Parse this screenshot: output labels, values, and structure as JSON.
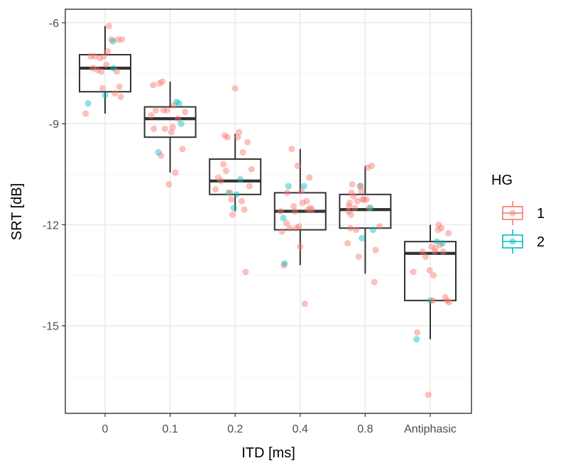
{
  "chart_data": {
    "type": "box",
    "xlabel": "ITD [ms]",
    "ylabel": "SRT [dB]",
    "categories": [
      "0",
      "0.1",
      "0.2",
      "0.4",
      "0.8",
      "Antiphasic"
    ],
    "ylim": [
      -17.6,
      -5.6
    ],
    "yticks": [
      -6,
      -9,
      -12,
      -15
    ],
    "grid": true,
    "legend": {
      "title": "HG",
      "position": "right",
      "entries": [
        {
          "label": "1",
          "color": "#F8766D"
        },
        {
          "label": "2",
          "color": "#00BFC4"
        }
      ]
    },
    "boxes": [
      {
        "category": "0",
        "whisker_low": -8.7,
        "q1": -8.05,
        "median": -7.35,
        "q3": -6.95,
        "whisker_high": -6.1
      },
      {
        "category": "0.1",
        "whisker_low": -10.45,
        "q1": -9.4,
        "median": -8.85,
        "q3": -8.5,
        "whisker_high": -7.75
      },
      {
        "category": "0.2",
        "whisker_low": -11.6,
        "q1": -11.1,
        "median": -10.7,
        "q3": -10.05,
        "whisker_high": -9.3
      },
      {
        "category": "0.4",
        "whisker_low": -13.2,
        "q1": -12.15,
        "median": -11.6,
        "q3": -11.05,
        "whisker_high": -9.75
      },
      {
        "category": "0.8",
        "whisker_low": -13.45,
        "q1": -12.1,
        "median": -11.55,
        "q3": -11.1,
        "whisker_high": -10.25
      },
      {
        "category": "Antiphasic",
        "whisker_low": -15.4,
        "q1": -14.25,
        "median": -12.85,
        "q3": -12.5,
        "whisker_high": -12.0
      }
    ],
    "points": [
      {
        "category": "0",
        "x_offset": -0.3,
        "y": -8.7,
        "group": "1"
      },
      {
        "category": "0",
        "x_offset": -0.26,
        "y": -8.4,
        "group": "2"
      },
      {
        "category": "0",
        "x_offset": -0.22,
        "y": -7.0,
        "group": "1"
      },
      {
        "category": "0",
        "x_offset": -0.19,
        "y": -7.35,
        "group": "1"
      },
      {
        "category": "0",
        "x_offset": -0.16,
        "y": -7.0,
        "group": "1"
      },
      {
        "category": "0",
        "x_offset": -0.12,
        "y": -7.4,
        "group": "1"
      },
      {
        "category": "0",
        "x_offset": -0.08,
        "y": -7.05,
        "group": "1"
      },
      {
        "category": "0",
        "x_offset": -0.06,
        "y": -7.45,
        "group": "1"
      },
      {
        "category": "0",
        "x_offset": -0.04,
        "y": -7.95,
        "group": "1"
      },
      {
        "category": "0",
        "x_offset": -0.02,
        "y": -7.0,
        "group": "1"
      },
      {
        "category": "0",
        "x_offset": 0.0,
        "y": -8.15,
        "group": "2"
      },
      {
        "category": "0",
        "x_offset": 0.02,
        "y": -7.25,
        "group": "1"
      },
      {
        "category": "0",
        "x_offset": 0.04,
        "y": -6.85,
        "group": "1"
      },
      {
        "category": "0",
        "x_offset": 0.06,
        "y": -6.1,
        "group": "1"
      },
      {
        "category": "0",
        "x_offset": 0.1,
        "y": -6.5,
        "group": "1"
      },
      {
        "category": "0",
        "x_offset": 0.12,
        "y": -6.55,
        "group": "2"
      },
      {
        "category": "0",
        "x_offset": 0.13,
        "y": -7.35,
        "group": "2"
      },
      {
        "category": "0",
        "x_offset": 0.15,
        "y": -8.1,
        "group": "1"
      },
      {
        "category": "0",
        "x_offset": 0.18,
        "y": -7.45,
        "group": "1"
      },
      {
        "category": "0",
        "x_offset": 0.2,
        "y": -6.5,
        "group": "1"
      },
      {
        "category": "0",
        "x_offset": 0.22,
        "y": -7.9,
        "group": "1"
      },
      {
        "category": "0",
        "x_offset": 0.24,
        "y": -8.2,
        "group": "1"
      },
      {
        "category": "0",
        "x_offset": 0.26,
        "y": -6.5,
        "group": "1"
      },
      {
        "category": "0.1",
        "x_offset": -0.29,
        "y": -8.75,
        "group": "1"
      },
      {
        "category": "0.1",
        "x_offset": -0.26,
        "y": -7.85,
        "group": "1"
      },
      {
        "category": "0.1",
        "x_offset": -0.25,
        "y": -9.15,
        "group": "1"
      },
      {
        "category": "0.1",
        "x_offset": -0.22,
        "y": -8.6,
        "group": "1"
      },
      {
        "category": "0.1",
        "x_offset": -0.18,
        "y": -9.85,
        "group": "2"
      },
      {
        "category": "0.1",
        "x_offset": -0.16,
        "y": -7.8,
        "group": "1"
      },
      {
        "category": "0.1",
        "x_offset": -0.14,
        "y": -9.95,
        "group": "1"
      },
      {
        "category": "0.1",
        "x_offset": -0.12,
        "y": -7.75,
        "group": "1"
      },
      {
        "category": "0.1",
        "x_offset": -0.1,
        "y": -8.6,
        "group": "1"
      },
      {
        "category": "0.1",
        "x_offset": -0.08,
        "y": -9.15,
        "group": "1"
      },
      {
        "category": "0.1",
        "x_offset": -0.05,
        "y": -8.6,
        "group": "1"
      },
      {
        "category": "0.1",
        "x_offset": -0.02,
        "y": -10.8,
        "group": "1"
      },
      {
        "category": "0.1",
        "x_offset": 0.02,
        "y": -9.25,
        "group": "1"
      },
      {
        "category": "0.1",
        "x_offset": 0.04,
        "y": -9.1,
        "group": "1"
      },
      {
        "category": "0.1",
        "x_offset": 0.06,
        "y": -8.45,
        "group": "1"
      },
      {
        "category": "0.1",
        "x_offset": 0.08,
        "y": -10.45,
        "group": "1"
      },
      {
        "category": "0.1",
        "x_offset": 0.1,
        "y": -8.35,
        "group": "2"
      },
      {
        "category": "0.1",
        "x_offset": 0.12,
        "y": -8.85,
        "group": "1"
      },
      {
        "category": "0.1",
        "x_offset": 0.14,
        "y": -8.4,
        "group": "2"
      },
      {
        "category": "0.1",
        "x_offset": 0.17,
        "y": -9.0,
        "group": "2"
      },
      {
        "category": "0.1",
        "x_offset": 0.19,
        "y": -9.75,
        "group": "1"
      },
      {
        "category": "0.1",
        "x_offset": 0.23,
        "y": -8.65,
        "group": "1"
      },
      {
        "category": "0.2",
        "x_offset": -0.3,
        "y": -10.95,
        "group": "1"
      },
      {
        "category": "0.2",
        "x_offset": -0.26,
        "y": -10.6,
        "group": "1"
      },
      {
        "category": "0.2",
        "x_offset": -0.22,
        "y": -10.7,
        "group": "1"
      },
      {
        "category": "0.2",
        "x_offset": -0.18,
        "y": -10.2,
        "group": "1"
      },
      {
        "category": "0.2",
        "x_offset": -0.16,
        "y": -9.35,
        "group": "1"
      },
      {
        "category": "0.2",
        "x_offset": -0.14,
        "y": -10.4,
        "group": "1"
      },
      {
        "category": "0.2",
        "x_offset": -0.12,
        "y": -9.4,
        "group": "1"
      },
      {
        "category": "0.2",
        "x_offset": -0.1,
        "y": -11.05,
        "group": "2"
      },
      {
        "category": "0.2",
        "x_offset": -0.08,
        "y": -11.05,
        "group": "1"
      },
      {
        "category": "0.2",
        "x_offset": -0.06,
        "y": -11.25,
        "group": "1"
      },
      {
        "category": "0.2",
        "x_offset": -0.04,
        "y": -11.7,
        "group": "1"
      },
      {
        "category": "0.2",
        "x_offset": -0.02,
        "y": -11.5,
        "group": "2"
      },
      {
        "category": "0.2",
        "x_offset": 0.0,
        "y": -7.95,
        "group": "1"
      },
      {
        "category": "0.2",
        "x_offset": 0.02,
        "y": -11.1,
        "group": "2"
      },
      {
        "category": "0.2",
        "x_offset": 0.04,
        "y": -9.4,
        "group": "1"
      },
      {
        "category": "0.2",
        "x_offset": 0.06,
        "y": -9.25,
        "group": "1"
      },
      {
        "category": "0.2",
        "x_offset": 0.08,
        "y": -10.65,
        "group": "2"
      },
      {
        "category": "0.2",
        "x_offset": 0.1,
        "y": -11.3,
        "group": "1"
      },
      {
        "category": "0.2",
        "x_offset": 0.12,
        "y": -9.85,
        "group": "1"
      },
      {
        "category": "0.2",
        "x_offset": 0.14,
        "y": -11.55,
        "group": "1"
      },
      {
        "category": "0.2",
        "x_offset": 0.16,
        "y": -13.4,
        "group": "1"
      },
      {
        "category": "0.2",
        "x_offset": 0.19,
        "y": -9.55,
        "group": "1"
      },
      {
        "category": "0.2",
        "x_offset": 0.22,
        "y": -10.85,
        "group": "1"
      },
      {
        "category": "0.2",
        "x_offset": 0.25,
        "y": -10.35,
        "group": "1"
      },
      {
        "category": "0.4",
        "x_offset": -0.3,
        "y": -11.6,
        "group": "1"
      },
      {
        "category": "0.4",
        "x_offset": -0.28,
        "y": -12.2,
        "group": "1"
      },
      {
        "category": "0.4",
        "x_offset": -0.26,
        "y": -11.8,
        "group": "2"
      },
      {
        "category": "0.4",
        "x_offset": -0.25,
        "y": -13.2,
        "group": "1"
      },
      {
        "category": "0.4",
        "x_offset": -0.24,
        "y": -13.15,
        "group": "2"
      },
      {
        "category": "0.4",
        "x_offset": -0.21,
        "y": -11.95,
        "group": "1"
      },
      {
        "category": "0.4",
        "x_offset": -0.2,
        "y": -11.05,
        "group": "1"
      },
      {
        "category": "0.4",
        "x_offset": -0.18,
        "y": -10.85,
        "group": "2"
      },
      {
        "category": "0.4",
        "x_offset": -0.16,
        "y": -12.1,
        "group": "1"
      },
      {
        "category": "0.4",
        "x_offset": -0.13,
        "y": -9.75,
        "group": "1"
      },
      {
        "category": "0.4",
        "x_offset": -0.1,
        "y": -11.45,
        "group": "1"
      },
      {
        "category": "0.4",
        "x_offset": -0.08,
        "y": -11.6,
        "group": "1"
      },
      {
        "category": "0.4",
        "x_offset": -0.06,
        "y": -12.1,
        "group": "1"
      },
      {
        "category": "0.4",
        "x_offset": -0.04,
        "y": -10.25,
        "group": "1"
      },
      {
        "category": "0.4",
        "x_offset": -0.02,
        "y": -12.05,
        "group": "1"
      },
      {
        "category": "0.4",
        "x_offset": 0.0,
        "y": -12.65,
        "group": "1"
      },
      {
        "category": "0.4",
        "x_offset": 0.02,
        "y": -11.0,
        "group": "1"
      },
      {
        "category": "0.4",
        "x_offset": 0.04,
        "y": -11.35,
        "group": "1"
      },
      {
        "category": "0.4",
        "x_offset": 0.06,
        "y": -10.85,
        "group": "2"
      },
      {
        "category": "0.4",
        "x_offset": 0.07,
        "y": -14.35,
        "group": "1"
      },
      {
        "category": "0.4",
        "x_offset": 0.1,
        "y": -11.3,
        "group": "1"
      },
      {
        "category": "0.4",
        "x_offset": 0.12,
        "y": -11.55,
        "group": "1"
      },
      {
        "category": "0.4",
        "x_offset": 0.14,
        "y": -10.6,
        "group": "1"
      },
      {
        "category": "0.4",
        "x_offset": 0.16,
        "y": -11.5,
        "group": "1"
      },
      {
        "category": "0.4",
        "x_offset": 0.18,
        "y": -11.55,
        "group": "1"
      },
      {
        "category": "0.8",
        "x_offset": -0.27,
        "y": -12.55,
        "group": "1"
      },
      {
        "category": "0.8",
        "x_offset": -0.26,
        "y": -11.6,
        "group": "1"
      },
      {
        "category": "0.8",
        "x_offset": -0.25,
        "y": -11.45,
        "group": "1"
      },
      {
        "category": "0.8",
        "x_offset": -0.24,
        "y": -11.35,
        "group": "1"
      },
      {
        "category": "0.8",
        "x_offset": -0.23,
        "y": -12.1,
        "group": "1"
      },
      {
        "category": "0.8",
        "x_offset": -0.22,
        "y": -11.7,
        "group": "1"
      },
      {
        "category": "0.8",
        "x_offset": -0.21,
        "y": -11.05,
        "group": "1"
      },
      {
        "category": "0.8",
        "x_offset": -0.2,
        "y": -10.8,
        "group": "1"
      },
      {
        "category": "0.8",
        "x_offset": -0.18,
        "y": -11.15,
        "group": "1"
      },
      {
        "category": "0.8",
        "x_offset": -0.16,
        "y": -11.5,
        "group": "1"
      },
      {
        "category": "0.8",
        "x_offset": -0.14,
        "y": -12.15,
        "group": "1"
      },
      {
        "category": "0.8",
        "x_offset": -0.12,
        "y": -11.3,
        "group": "1"
      },
      {
        "category": "0.8",
        "x_offset": -0.1,
        "y": -12.95,
        "group": "1"
      },
      {
        "category": "0.8",
        "x_offset": -0.08,
        "y": -10.85,
        "group": "2"
      },
      {
        "category": "0.8",
        "x_offset": -0.07,
        "y": -10.85,
        "group": "1"
      },
      {
        "category": "0.8",
        "x_offset": -0.06,
        "y": -11.0,
        "group": "1"
      },
      {
        "category": "0.8",
        "x_offset": -0.05,
        "y": -12.4,
        "group": "2"
      },
      {
        "category": "0.8",
        "x_offset": -0.04,
        "y": -11.25,
        "group": "1"
      },
      {
        "category": "0.8",
        "x_offset": -0.02,
        "y": -11.25,
        "group": "1"
      },
      {
        "category": "0.8",
        "x_offset": 0.02,
        "y": -11.25,
        "group": "1"
      },
      {
        "category": "0.8",
        "x_offset": 0.04,
        "y": -10.3,
        "group": "1"
      },
      {
        "category": "0.8",
        "x_offset": 0.06,
        "y": -11.5,
        "group": "1"
      },
      {
        "category": "0.8",
        "x_offset": 0.08,
        "y": -11.5,
        "group": "2"
      },
      {
        "category": "0.8",
        "x_offset": 0.1,
        "y": -10.25,
        "group": "1"
      },
      {
        "category": "0.8",
        "x_offset": 0.12,
        "y": -12.15,
        "group": "2"
      },
      {
        "category": "0.8",
        "x_offset": 0.14,
        "y": -13.7,
        "group": "1"
      },
      {
        "category": "0.8",
        "x_offset": 0.16,
        "y": -12.75,
        "group": "1"
      },
      {
        "category": "0.8",
        "x_offset": 0.22,
        "y": -12.05,
        "group": "1"
      },
      {
        "category": "Antiphasic",
        "x_offset": -0.26,
        "y": -13.4,
        "group": "1"
      },
      {
        "category": "Antiphasic",
        "x_offset": -0.21,
        "y": -15.4,
        "group": "2"
      },
      {
        "category": "Antiphasic",
        "x_offset": -0.2,
        "y": -15.2,
        "group": "1"
      },
      {
        "category": "Antiphasic",
        "x_offset": -0.12,
        "y": -12.8,
        "group": "1"
      },
      {
        "category": "Antiphasic",
        "x_offset": -0.07,
        "y": -12.95,
        "group": "1"
      },
      {
        "category": "Antiphasic",
        "x_offset": -0.03,
        "y": -17.05,
        "group": "1"
      },
      {
        "category": "Antiphasic",
        "x_offset": -0.01,
        "y": -13.35,
        "group": "1"
      },
      {
        "category": "Antiphasic",
        "x_offset": 0.0,
        "y": -14.25,
        "group": "2"
      },
      {
        "category": "Antiphasic",
        "x_offset": 0.02,
        "y": -12.65,
        "group": "1"
      },
      {
        "category": "Antiphasic",
        "x_offset": 0.04,
        "y": -14.25,
        "group": "1"
      },
      {
        "category": "Antiphasic",
        "x_offset": 0.05,
        "y": -13.5,
        "group": "1"
      },
      {
        "category": "Antiphasic",
        "x_offset": 0.07,
        "y": -12.8,
        "group": "1"
      },
      {
        "category": "Antiphasic",
        "x_offset": 0.08,
        "y": -12.7,
        "group": "1"
      },
      {
        "category": "Antiphasic",
        "x_offset": 0.1,
        "y": -12.5,
        "group": "2"
      },
      {
        "category": "Antiphasic",
        "x_offset": 0.12,
        "y": -12.15,
        "group": "1"
      },
      {
        "category": "Antiphasic",
        "x_offset": 0.13,
        "y": -12.0,
        "group": "1"
      },
      {
        "category": "Antiphasic",
        "x_offset": 0.15,
        "y": -12.6,
        "group": "1"
      },
      {
        "category": "Antiphasic",
        "x_offset": 0.17,
        "y": -12.1,
        "group": "1"
      },
      {
        "category": "Antiphasic",
        "x_offset": 0.19,
        "y": -12.55,
        "group": "2"
      },
      {
        "category": "Antiphasic",
        "x_offset": 0.2,
        "y": -12.8,
        "group": "1"
      },
      {
        "category": "Antiphasic",
        "x_offset": 0.23,
        "y": -14.15,
        "group": "1"
      },
      {
        "category": "Antiphasic",
        "x_offset": 0.26,
        "y": -14.25,
        "group": "1"
      },
      {
        "category": "Antiphasic",
        "x_offset": 0.29,
        "y": -14.3,
        "group": "1"
      },
      {
        "category": "Antiphasic",
        "x_offset": 0.28,
        "y": -12.25,
        "group": "1"
      }
    ]
  }
}
